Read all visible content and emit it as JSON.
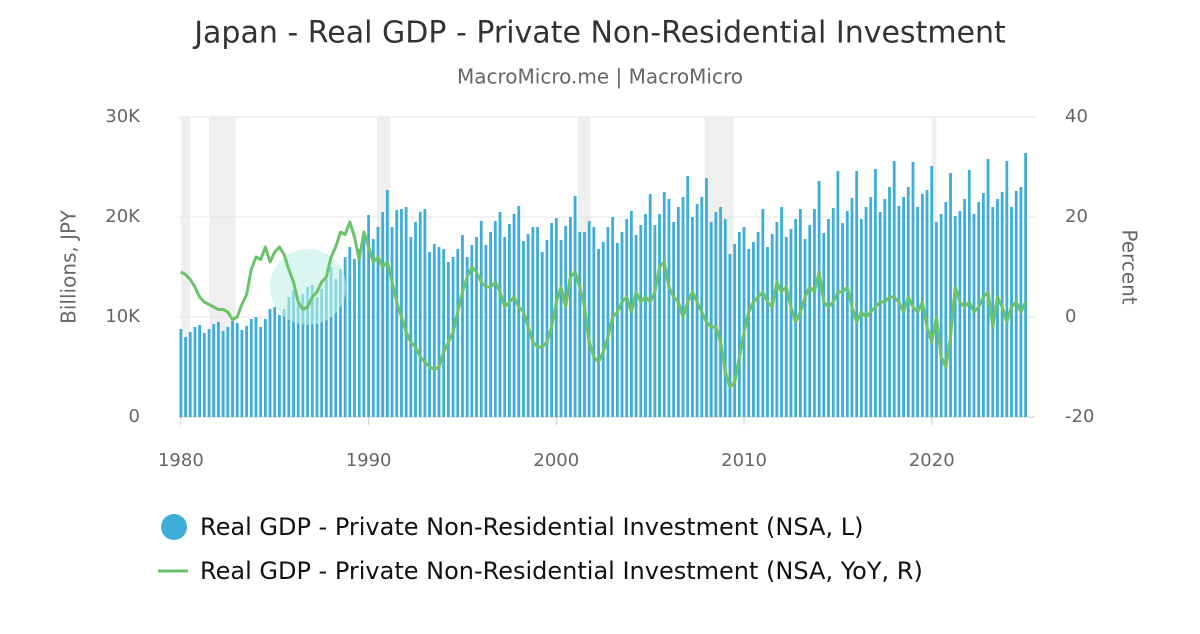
{
  "chart_data": {
    "type": "bar-line",
    "title": "Japan - Real GDP - Private Non-Residential Investment",
    "subtitle": "MacroMicro.me | MacroMicro",
    "y_label": "Billions, JPY",
    "y2_label": "Percent",
    "xlim": [
      1979.9,
      2025.5
    ],
    "xticks": [
      1980,
      1990,
      2000,
      2010,
      2020
    ],
    "ylim": [
      0,
      30000
    ],
    "yticks": [
      0,
      {
        "value": 10000,
        "label": "10K"
      },
      {
        "value": 20000,
        "label": "20K"
      },
      {
        "value": 30000,
        "label": "30K"
      }
    ],
    "y2lim": [
      -20,
      40
    ],
    "y2ticks": [
      -20,
      0,
      20,
      40
    ],
    "grid": true,
    "shaded_ranges": [
      [
        1980.0,
        1980.5
      ],
      [
        1981.5,
        1982.9
      ],
      [
        1990.45,
        1991.15
      ],
      [
        2001.15,
        2001.8
      ],
      [
        2007.9,
        2009.45
      ],
      [
        2020.0,
        2020.25
      ]
    ],
    "shade_color": "#efefef",
    "x": [
      1980,
      1980.25,
      1980.5,
      1980.75,
      1981,
      1981.25,
      1981.5,
      1981.75,
      1982,
      1982.25,
      1982.5,
      1982.75,
      1983,
      1983.25,
      1983.5,
      1983.75,
      1984,
      1984.25,
      1984.5,
      1984.75,
      1985,
      1985.25,
      1985.5,
      1985.75,
      1986,
      1986.25,
      1986.5,
      1986.75,
      1987,
      1987.25,
      1987.5,
      1987.75,
      1988,
      1988.25,
      1988.5,
      1988.75,
      1989,
      1989.25,
      1989.5,
      1989.75,
      1990,
      1990.25,
      1990.5,
      1990.75,
      1991,
      1991.25,
      1991.5,
      1991.75,
      1992,
      1992.25,
      1992.5,
      1992.75,
      1993,
      1993.25,
      1993.5,
      1993.75,
      1994,
      1994.25,
      1994.5,
      1994.75,
      1995,
      1995.25,
      1995.5,
      1995.75,
      1996,
      1996.25,
      1996.5,
      1996.75,
      1997,
      1997.25,
      1997.5,
      1997.75,
      1998,
      1998.25,
      1998.5,
      1998.75,
      1999,
      1999.25,
      1999.5,
      1999.75,
      2000,
      2000.25,
      2000.5,
      2000.75,
      2001,
      2001.25,
      2001.5,
      2001.75,
      2002,
      2002.25,
      2002.5,
      2002.75,
      2003,
      2003.25,
      2003.5,
      2003.75,
      2004,
      2004.25,
      2004.5,
      2004.75,
      2005,
      2005.25,
      2005.5,
      2005.75,
      2006,
      2006.25,
      2006.5,
      2006.75,
      2007,
      2007.25,
      2007.5,
      2007.75,
      2008,
      2008.25,
      2008.5,
      2008.75,
      2009,
      2009.25,
      2009.5,
      2009.75,
      2010,
      2010.25,
      2010.5,
      2010.75,
      2011,
      2011.25,
      2011.5,
      2011.75,
      2012,
      2012.25,
      2012.5,
      2012.75,
      2013,
      2013.25,
      2013.5,
      2013.75,
      2014,
      2014.25,
      2014.5,
      2014.75,
      2015,
      2015.25,
      2015.5,
      2015.75,
      2016,
      2016.25,
      2016.5,
      2016.75,
      2017,
      2017.25,
      2017.5,
      2017.75,
      2018,
      2018.25,
      2018.5,
      2018.75,
      2019,
      2019.25,
      2019.5,
      2019.75,
      2020,
      2020.25,
      2020.5,
      2020.75,
      2021,
      2021.25,
      2021.5,
      2021.75,
      2022,
      2022.25,
      2022.5,
      2022.75,
      2023,
      2023.25,
      2023.5,
      2023.75,
      2024,
      2024.25,
      2024.5,
      2024.75,
      2025
    ],
    "series": [
      {
        "name": "Real GDP - Private Non-Residential Investment (NSA, L)",
        "type": "bar",
        "color": "#3eaed8",
        "values": [
          8800,
          8000,
          8500,
          9000,
          9200,
          8400,
          8800,
          9300,
          9500,
          8600,
          9000,
          9600,
          9400,
          8700,
          9100,
          9800,
          10000,
          9000,
          9800,
          10800,
          11000,
          10200,
          10800,
          12000,
          12700,
          11500,
          12300,
          13000,
          13200,
          12000,
          12800,
          13800,
          15000,
          13800,
          14800,
          16000,
          17000,
          15800,
          16800,
          18000,
          20200,
          17800,
          19000,
          20500,
          22700,
          19000,
          20700,
          20800,
          21000,
          18000,
          19500,
          20500,
          20800,
          16500,
          17300,
          17000,
          16800,
          15500,
          16000,
          16800,
          18200,
          16000,
          17200,
          18000,
          19600,
          17200,
          18500,
          19600,
          20500,
          18000,
          19300,
          20300,
          21100,
          17600,
          18300,
          19000,
          19000,
          16500,
          17700,
          19400,
          19900,
          17700,
          19100,
          20000,
          22100,
          18500,
          18500,
          19600,
          19000,
          16800,
          17500,
          19000,
          20000,
          17400,
          18500,
          19800,
          20600,
          18200,
          19200,
          20300,
          22300,
          19200,
          20300,
          22500,
          21800,
          19500,
          21000,
          22000,
          24100,
          20000,
          21300,
          22000,
          23900,
          19500,
          20500,
          21000,
          19800,
          16300,
          17300,
          18500,
          19000,
          16800,
          17500,
          18500,
          20800,
          17000,
          18300,
          19500,
          21000,
          18000,
          18800,
          19800,
          20800,
          17800,
          19200,
          20800,
          23600,
          18400,
          19800,
          20900,
          24600,
          19400,
          20600,
          21900,
          24600,
          19800,
          21000,
          22000,
          24800,
          20500,
          21800,
          23000,
          25600,
          21100,
          22000,
          23000,
          25500,
          21000,
          22300,
          22700,
          25100,
          19500,
          20300,
          21500,
          24400,
          20100,
          20600,
          21800,
          24700,
          20300,
          21500,
          22400,
          25800,
          21000,
          21800,
          22500,
          25600,
          21000,
          22600,
          23000,
          26400
        ]
      },
      {
        "name": "Real GDP - Private Non-Residential Investment (NSA, YoY, R)",
        "type": "line",
        "axis": "y2",
        "color": "#6cc36a",
        "values": [
          9,
          8.5,
          7.5,
          6,
          4,
          3,
          2.5,
          2,
          1.5,
          1.5,
          1,
          -0.5,
          0,
          2.5,
          4.5,
          9.5,
          12,
          11.5,
          14,
          11,
          13,
          14,
          12.5,
          9.5,
          7,
          3,
          1.5,
          2,
          4,
          5,
          7,
          8,
          12,
          14,
          17,
          16.5,
          19,
          16,
          11.5,
          17,
          14,
          11,
          12,
          10,
          11,
          7,
          3,
          0,
          -3,
          -5,
          -6,
          -8,
          -9,
          -10,
          -10.5,
          -10,
          -7,
          -5,
          -3,
          1,
          5,
          8,
          10,
          9,
          7,
          6,
          6,
          7,
          5,
          2,
          3,
          4,
          2,
          1,
          -2,
          -5,
          -6,
          -6,
          -5,
          -2,
          3,
          6,
          2,
          8,
          9,
          6,
          2,
          -5,
          -8,
          -9,
          -7,
          -4,
          0,
          1,
          3,
          4,
          1,
          5,
          3,
          4,
          3,
          5,
          10,
          11,
          6,
          4,
          3,
          0,
          3,
          5,
          3,
          1,
          -1,
          -2,
          -2,
          -5,
          -11,
          -14,
          -13,
          -8,
          -3,
          1,
          3,
          4,
          5,
          3,
          2,
          7,
          5,
          6,
          2,
          -1,
          1,
          4,
          6,
          5,
          9,
          3,
          2,
          3,
          5,
          5,
          6,
          2,
          -1,
          1,
          0,
          1,
          2,
          3,
          3,
          4,
          4,
          3,
          1,
          4,
          2,
          1,
          3,
          -2,
          -5,
          0,
          -8,
          -10,
          -4,
          6,
          3,
          2,
          3,
          1,
          2,
          4,
          5,
          -2,
          4,
          2,
          -1,
          2,
          3,
          1,
          3
        ]
      }
    ]
  }
}
